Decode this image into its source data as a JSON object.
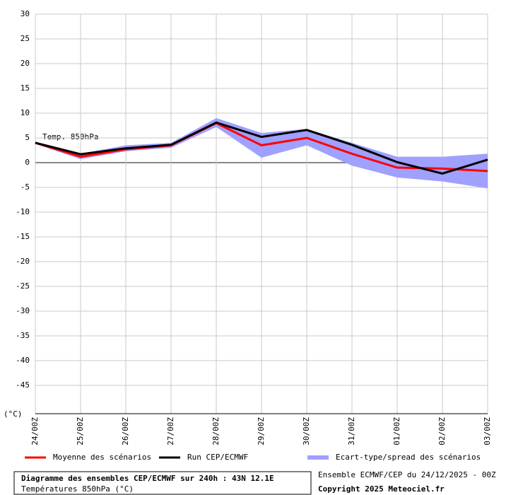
{
  "chart_data": {
    "type": "line",
    "title": "Diagramme des ensembles CEP/ECMWF sur 240h : 43N 12.1E",
    "subtitle": "Températures 850hPa (°C)",
    "source": "Ensemble ECMWF/CEP du 24/12/2025 - 00Z",
    "copyright": "Copyright 2025 Meteociel.fr",
    "y_label": "(°C)",
    "annotation": "Temp. 850hPa",
    "categories": [
      "24/00Z",
      "25/00Z",
      "26/00Z",
      "27/00Z",
      "28/00Z",
      "29/00Z",
      "30/00Z",
      "31/00Z",
      "01/00Z",
      "02/00Z",
      "03/00Z"
    ],
    "series": [
      {
        "name": "Moyenne des scénarios",
        "color": "#ff0000",
        "values": [
          4,
          1.2,
          2.7,
          3.5,
          8,
          3.5,
          5,
          1.8,
          -1,
          -1.2,
          -1.7
        ]
      },
      {
        "name": "Run CEP/ECMWF",
        "color": "#000000",
        "values": [
          4,
          1.7,
          2.9,
          3.6,
          8.1,
          5.2,
          6.6,
          3.6,
          0.1,
          -2.2,
          0.6
        ]
      }
    ],
    "band": {
      "name": "Ecart-type/spread des scénarios",
      "color": "#a0a0ff",
      "upper": [
        4.2,
        1.8,
        3.5,
        4,
        9,
        6,
        6.8,
        4,
        1.2,
        1.2,
        1.8
      ],
      "lower": [
        3.8,
        0.7,
        2.3,
        3,
        7.2,
        1,
        3.5,
        -0.6,
        -3,
        -3.8,
        -5.2
      ]
    },
    "ylim": [
      -50,
      30
    ],
    "yticks": [
      30,
      25,
      20,
      15,
      10,
      5,
      0,
      -5,
      -10,
      -15,
      -20,
      -25,
      -30,
      -35,
      -40,
      -45
    ],
    "grid": true
  }
}
